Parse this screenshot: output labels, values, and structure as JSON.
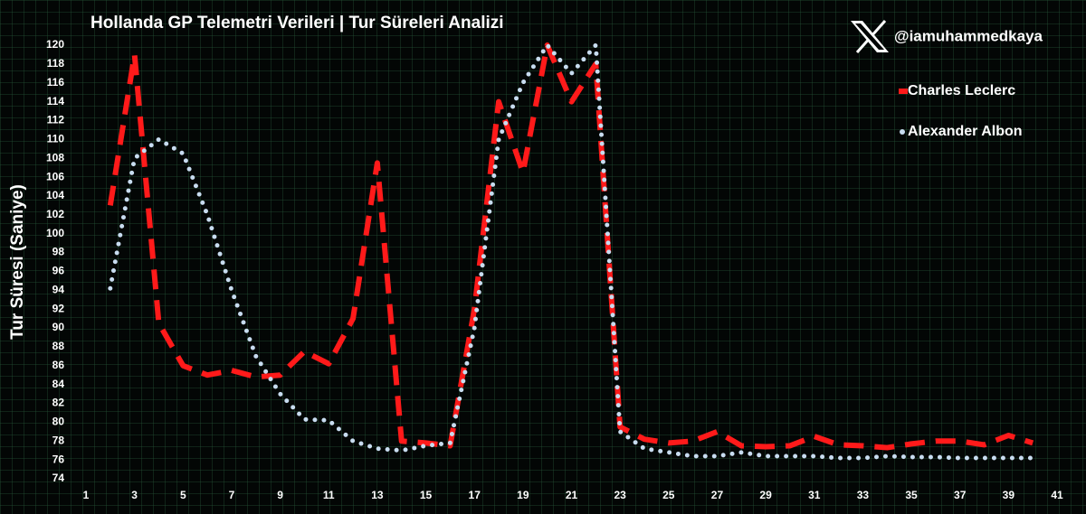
{
  "chart_data": {
    "type": "line",
    "title": "Hollanda GP Telemetri Verileri | Tur Süreleri Analizi",
    "y_label": "Tur Süresi (Saniye)",
    "handle": "@iamuhammedkaya",
    "x": [
      2,
      3,
      4,
      5,
      6,
      7,
      8,
      9,
      10,
      11,
      12,
      13,
      14,
      15,
      16,
      17,
      18,
      19,
      20,
      21,
      22,
      23,
      24,
      25,
      26,
      27,
      28,
      29,
      30,
      31,
      32,
      33,
      34,
      35,
      36,
      37,
      38,
      39,
      40
    ],
    "series": [
      {
        "name": "Charles Leclerc",
        "color": "#ff1a1a",
        "style": "dashed",
        "values": [
          103,
          119,
          90.5,
          86,
          85,
          85.5,
          84.8,
          85,
          87.5,
          86.2,
          91,
          107.5,
          78,
          77.8,
          77.5,
          92,
          114,
          106.5,
          120,
          114,
          118,
          79.5,
          78.2,
          77.8,
          78,
          79,
          77.5,
          77.4,
          77.5,
          78.5,
          77.6,
          77.5,
          77.3,
          77.7,
          78,
          78,
          77.6,
          78.6,
          77.8
        ]
      },
      {
        "name": "Alexander Albon",
        "color": "#c8dcf0",
        "style": "dotted",
        "values": [
          94.2,
          108,
          110,
          108.5,
          102,
          94,
          87,
          83,
          80.3,
          80.2,
          78,
          77.2,
          77,
          77.5,
          77.8,
          90,
          110,
          116,
          120,
          117,
          120,
          79,
          77.2,
          76.8,
          76.4,
          76.4,
          76.8,
          76.4,
          76.4,
          76.4,
          76.2,
          76.2,
          76.4,
          76.3,
          76.3,
          76.2,
          76.2,
          76.2,
          76.2
        ]
      }
    ],
    "xlim": [
      1,
      41
    ],
    "xticks": [
      1,
      3,
      5,
      7,
      9,
      11,
      13,
      15,
      17,
      19,
      21,
      23,
      25,
      27,
      29,
      31,
      33,
      35,
      37,
      39,
      41
    ],
    "ylim": [
      74,
      120
    ],
    "yticks": [
      74,
      76,
      78,
      80,
      82,
      84,
      86,
      88,
      90,
      92,
      94,
      96,
      98,
      100,
      102,
      104,
      106,
      108,
      110,
      112,
      114,
      116,
      118,
      120
    ],
    "legend": "upper right"
  }
}
